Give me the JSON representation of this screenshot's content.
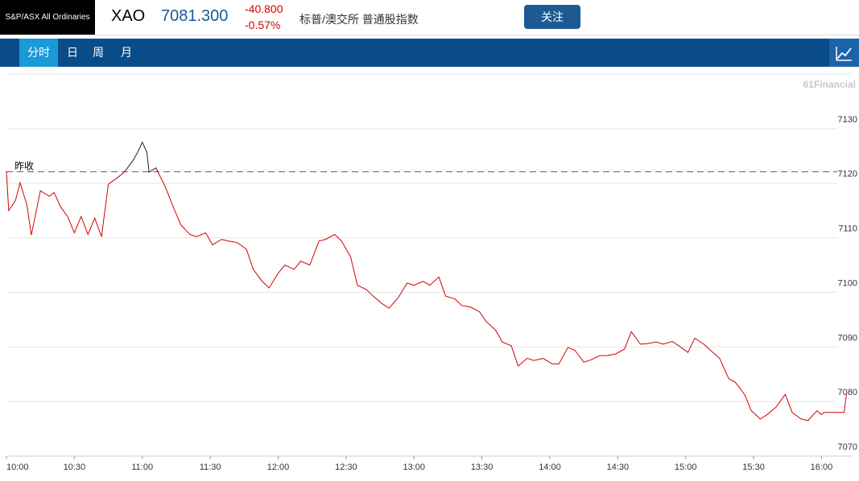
{
  "header": {
    "logo": "S&P/ASX All Ordinaries",
    "symbol": "XAO",
    "price": "7081.300",
    "change": "-40.800",
    "change_pct": "-0.57%",
    "name": "标普/澳交所 普通股指数",
    "follow_button": "关注"
  },
  "tabs": [
    "分时",
    "日",
    "周",
    "月"
  ],
  "watermark": "61Financial",
  "chart_data": {
    "type": "line",
    "x": [
      0,
      1,
      4,
      6,
      9,
      11,
      15,
      19,
      21,
      24,
      27,
      30,
      33,
      36,
      39,
      42,
      45,
      49,
      52,
      56,
      58,
      60,
      62,
      63,
      66,
      70,
      74,
      77,
      81,
      84,
      88,
      91,
      95,
      98,
      102,
      106,
      109,
      113,
      116,
      120,
      123,
      127,
      130,
      134,
      138,
      141,
      145,
      148,
      152,
      155,
      159,
      162,
      166,
      169,
      173,
      177,
      180,
      184,
      187,
      191,
      194,
      198,
      201,
      205,
      209,
      212,
      216,
      219,
      223,
      226,
      230,
      233,
      237,
      241,
      244,
      248,
      251,
      255,
      258,
      262,
      265,
      269,
      273,
      276,
      280,
      283,
      287,
      290,
      294,
      297,
      301,
      304,
      308,
      312,
      315,
      319,
      322,
      326,
      329,
      333,
      336,
      340,
      344,
      347,
      351,
      354,
      358,
      360,
      361,
      370,
      371
    ],
    "series": [
      {
        "color": "#d40000",
        "values": [
          7122.2,
          7115.0,
          7116.8,
          7120.1,
          7116.1,
          7110.5,
          7118.6,
          7117.6,
          7118.3,
          7115.6,
          7113.9,
          7110.9,
          7113.9,
          7110.6,
          7113.6,
          7110.2,
          7119.8,
          7121.0,
          7122.0,
          7124.2,
          7125.7,
          7127.5,
          7125.7,
          7122.0,
          7122.8,
          7119.5,
          7115.3,
          7112.4,
          7110.6,
          7110.2,
          7110.9,
          7108.7,
          7109.7,
          7109.4,
          7109.1,
          7107.9,
          7104.2,
          7102.0,
          7100.8,
          7103.5,
          7105.0,
          7104.2,
          7105.7,
          7105.0,
          7109.4,
          7109.7,
          7110.6,
          7109.4,
          7106.5,
          7101.3,
          7100.5,
          7099.3,
          7097.9,
          7097.1,
          7099.0,
          7101.7,
          7101.3,
          7102.0,
          7101.3,
          7102.8,
          7099.3,
          7098.8,
          7097.6,
          7097.3,
          7096.4,
          7094.6,
          7093.1,
          7090.9,
          7090.2,
          7086.5,
          7087.9,
          7087.5,
          7087.9,
          7086.9,
          7086.9,
          7089.9,
          7089.4,
          7087.2,
          7087.6,
          7088.4,
          7088.4,
          7088.7,
          7089.6,
          7092.8,
          7090.5,
          7090.6,
          7090.9,
          7090.5,
          7091.0,
          7090.2,
          7089.0,
          7091.6,
          7090.5,
          7089.0,
          7087.9,
          7084.2,
          7083.5,
          7081.3,
          7078.3,
          7076.8,
          7077.6,
          7079.0,
          7081.3,
          7078.0,
          7076.8,
          7076.5,
          7078.3,
          7077.6,
          7078.0,
          7078.0,
          7081.3
        ]
      }
    ],
    "reference_line": {
      "value": 7122.1,
      "label": "昨收",
      "color_above": "#222222"
    },
    "xlim": [
      0,
      373
    ],
    "xticks": [
      {
        "value": 0,
        "label": "10:00"
      },
      {
        "value": 30,
        "label": "10:30"
      },
      {
        "value": 60,
        "label": "11:00"
      },
      {
        "value": 90,
        "label": "11:30"
      },
      {
        "value": 120,
        "label": "12:00"
      },
      {
        "value": 150,
        "label": "12:30"
      },
      {
        "value": 180,
        "label": "13:00"
      },
      {
        "value": 210,
        "label": "13:30"
      },
      {
        "value": 240,
        "label": "14:00"
      },
      {
        "value": 270,
        "label": "14:30"
      },
      {
        "value": 300,
        "label": "15:00"
      },
      {
        "value": 330,
        "label": "15:30"
      },
      {
        "value": 360,
        "label": "16:00"
      }
    ],
    "ylim": [
      7070,
      7140
    ],
    "yticks": [
      7070,
      7080,
      7090,
      7100,
      7110,
      7120,
      7130
    ],
    "grid": true
  }
}
